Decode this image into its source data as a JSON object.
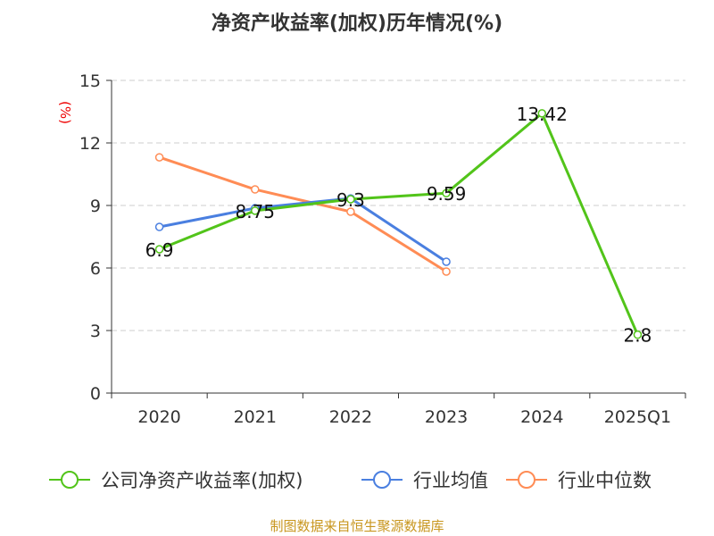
{
  "chart_data": {
    "type": "line",
    "title": "净资产收益率(加权)历年情况(%)",
    "ylabel": "(%)",
    "xlabel": "",
    "ylim": [
      0,
      15
    ],
    "yticks": [
      "0",
      "3",
      "6",
      "9",
      "12",
      "15"
    ],
    "grid": true,
    "categories": [
      "2020",
      "2021",
      "2022",
      "2023",
      "2024",
      "2025Q1"
    ],
    "series": [
      {
        "name": "公司净资产收益率(加权)",
        "color": "#52c41a",
        "values": [
          6.9,
          8.75,
          9.3,
          9.59,
          13.42,
          2.8
        ],
        "labels": [
          "6.9",
          "8.75",
          "9.3",
          "9.59",
          "13.42",
          "2.8"
        ]
      },
      {
        "name": "行业均值",
        "color": "#4a7fe0",
        "values": [
          7.97,
          8.87,
          9.34,
          6.3,
          null,
          null
        ]
      },
      {
        "name": "行业中位数",
        "color": "#ff8c55",
        "values": [
          11.31,
          9.77,
          8.7,
          5.83,
          null,
          null
        ]
      }
    ],
    "legend_position": "bottom",
    "source": "制图数据来自恒生聚源数据库"
  }
}
